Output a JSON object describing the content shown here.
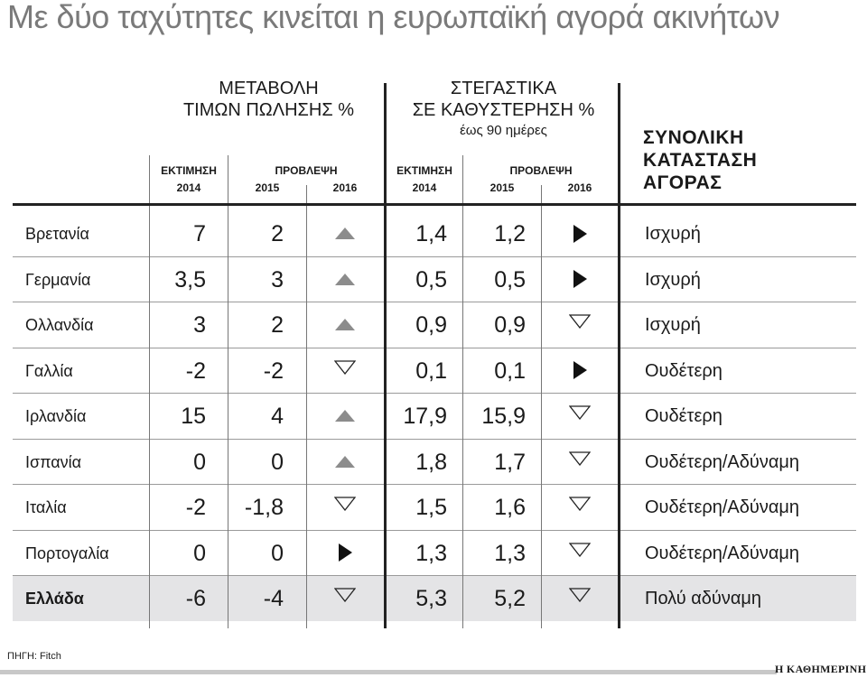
{
  "title": "Με δύο ταχύτητες κινείται η ευρωπαϊκή αγορά ακινήτων",
  "groups": {
    "prices": {
      "line1": "ΜΕΤΑΒΟΛΗ",
      "line2": "ΤΙΜΩΝ ΠΩΛΗΣΗΣ %"
    },
    "loans": {
      "line1": "ΣΤΕΓΑΣΤΙΚΑ",
      "line2": "ΣΕ ΚΑΘΥΣΤΕΡΗΣΗ %",
      "note": "έως 90 ημέρες"
    },
    "status_line1": "ΣΥΝΟΛΙΚΗ",
    "status_line2": "ΚΑΤΑΣΤΑΣΗ",
    "status_line3": "ΑΓΟΡΑΣ"
  },
  "subheaders": {
    "estimate": "ΕΚΤΙΜΗΣΗ",
    "forecast": "ΠΡΟΒΛΕΨΗ",
    "y2014": "2014",
    "y2015": "2015",
    "y2016": "2016"
  },
  "rows": [
    {
      "country": "Βρετανία",
      "p2014": "7",
      "p2015": "2",
      "p2016": "up",
      "l2014": "1,4",
      "l2015": "1,2",
      "l2016": "right",
      "status": "Ισχυρή"
    },
    {
      "country": "Γερμανία",
      "p2014": "3,5",
      "p2015": "3",
      "p2016": "up",
      "l2014": "0,5",
      "l2015": "0,5",
      "l2016": "right",
      "status": "Ισχυρή"
    },
    {
      "country": "Ολλανδία",
      "p2014": "3",
      "p2015": "2",
      "p2016": "up",
      "l2014": "0,9",
      "l2015": "0,9",
      "l2016": "down",
      "status": "Ισχυρή"
    },
    {
      "country": "Γαλλία",
      "p2014": "-2",
      "p2015": "-2",
      "p2016": "down",
      "l2014": "0,1",
      "l2015": "0,1",
      "l2016": "right",
      "status": "Ουδέτερη"
    },
    {
      "country": "Ιρλανδία",
      "p2014": "15",
      "p2015": "4",
      "p2016": "up",
      "l2014": "17,9",
      "l2015": "15,9",
      "l2016": "down",
      "status": "Ουδέτερη"
    },
    {
      "country": "Ισπανία",
      "p2014": "0",
      "p2015": "0",
      "p2016": "up",
      "l2014": "1,8",
      "l2015": "1,7",
      "l2016": "down",
      "status": "Ουδέτερη/Αδύναμη"
    },
    {
      "country": "Ιταλία",
      "p2014": "-2",
      "p2015": "-1,8",
      "p2016": "down",
      "l2014": "1,5",
      "l2015": "1,6",
      "l2016": "down",
      "status": "Ουδέτερη/Αδύναμη"
    },
    {
      "country": "Πορτογαλία",
      "p2014": "0",
      "p2015": "0",
      "p2016": "right",
      "l2014": "1,3",
      "l2015": "1,3",
      "l2016": "down",
      "status": "Ουδέτερη/Αδύναμη"
    },
    {
      "country": "Ελλάδα",
      "p2014": "-6",
      "p2015": "-4",
      "p2016": "down",
      "l2014": "5,3",
      "l2015": "5,2",
      "l2016": "down",
      "status": "Πολύ αδύναμη",
      "highlight": true
    }
  ],
  "source": "ΠΗΓΗ: Fitch",
  "brand": "Η ΚΑΘΗΜΕΡΙΝΗ",
  "colors": {
    "title": "#7a7a7a",
    "up_arrow": "#8c8c8c",
    "highlight_row": "#e4e4e6"
  }
}
